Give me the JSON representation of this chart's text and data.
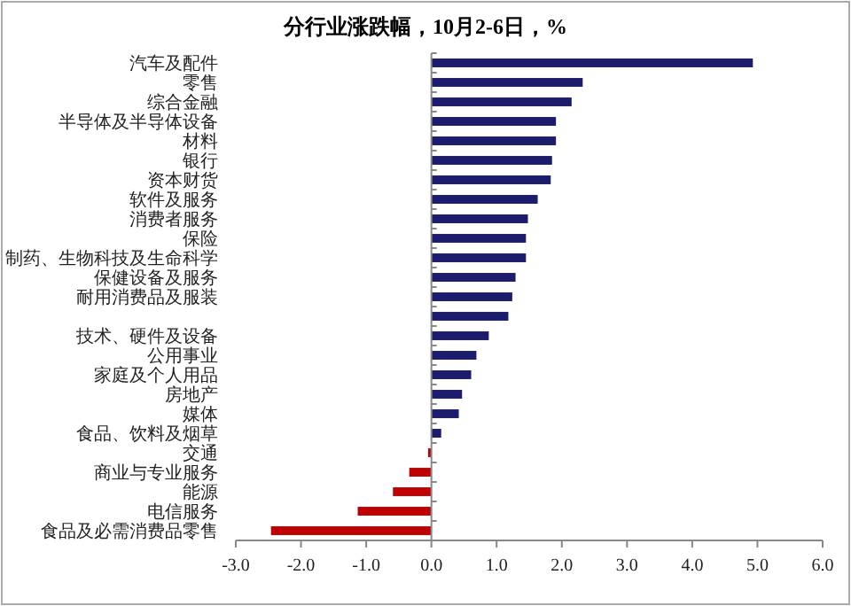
{
  "chart_data": {
    "type": "bar",
    "orientation": "horizontal",
    "title": "分行业涨跌幅，10月2-6日，%",
    "categories": [
      "汽车及配件",
      "零售",
      "综合金融",
      "半导体及半导体设备",
      "材料",
      "银行",
      "资本财货",
      "软件及服务",
      "消费者服务",
      "保险",
      "制药、生物科技及生命科学",
      "保健设备及服务",
      "耐用消费品及服装",
      null,
      "技术、硬件及设备",
      "公用事业",
      "家庭及个人用品",
      "房地产",
      "媒体",
      "食品、饮料及烟草",
      "交通",
      "商业与专业服务",
      "能源",
      "电信服务",
      "食品及必需消费品零售"
    ],
    "values": [
      4.93,
      2.32,
      2.15,
      1.91,
      1.91,
      1.85,
      1.83,
      1.63,
      1.48,
      1.45,
      1.45,
      1.29,
      1.24,
      1.18,
      0.88,
      0.69,
      0.61,
      0.47,
      0.42,
      0.15,
      -0.05,
      -0.34,
      -0.59,
      -1.13,
      -2.46
    ],
    "colors": [
      "#1c1c6e",
      "#1c1c6e",
      "#1c1c6e",
      "#1c1c6e",
      "#1c1c6e",
      "#1c1c6e",
      "#1c1c6e",
      "#1c1c6e",
      "#1c1c6e",
      "#1c1c6e",
      "#1c1c6e",
      "#1c1c6e",
      "#1c1c6e",
      "#1c1c6e",
      "#1c1c6e",
      "#1c1c6e",
      "#1c1c6e",
      "#1c1c6e",
      "#1c1c6e",
      "#1c1c6e",
      "#c00000",
      "#c00000",
      "#c00000",
      "#c00000",
      "#c00000"
    ],
    "xlim": [
      -3,
      6
    ],
    "xticks": [
      {
        "value": -3,
        "label": "-3.0"
      },
      {
        "value": -2,
        "label": "-2.0"
      },
      {
        "value": -1,
        "label": "-1.0"
      },
      {
        "value": 0,
        "label": "0.0"
      },
      {
        "value": 1,
        "label": "1.0"
      },
      {
        "value": 2,
        "label": "2.0"
      },
      {
        "value": 3,
        "label": "3.0"
      },
      {
        "value": 4,
        "label": "4.0"
      },
      {
        "value": 5,
        "label": "5.0"
      },
      {
        "value": 6,
        "label": "6.0"
      }
    ]
  }
}
